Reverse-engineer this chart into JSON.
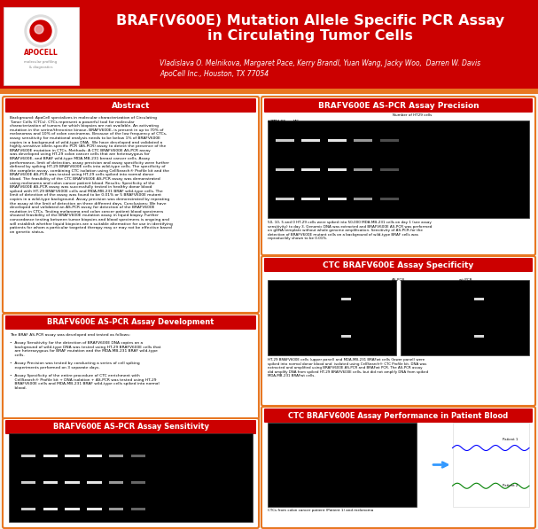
{
  "bg_color": "#f5f5f0",
  "header_bg": "#cc0000",
  "header_stripe_color": "#e87722",
  "title_text": "BRAF(V600E) Mutation Allele Specific PCR Assay\nin Circulating Tumor Cells",
  "title_color": "#ffffff",
  "title_fontsize": 11.5,
  "authors_text": "Vladislava O. Melnikova, Margaret Pace, Kerry Brandl, Yuan Wang, Jacky Woo,  Darren W. Davis",
  "affiliation_text": "ApoCell Inc., Houston, TX 77054",
  "authors_color": "#ffffff",
  "authors_fontsize": 5.5,
  "section_header_bg": "#cc0000",
  "section_header_color": "#ffffff",
  "section_border_color": "#e87722",
  "panel_bg": "#ffffff",
  "abstract_title": "Abstract",
  "abstract_body": "Background: ApoCell specializes in molecular characterization of Circulating\nTumor Cells (CTCs). CTCs represent a powerful tool for molecular\ncharacterization of tumors for which biopsies are not available. An activating\nmutation in the serine/threonine kinase, BRAFV600E, is present in up to 70% of\nmelanomas and 10% of colon carcinomas. Because of the low frequency of CTCs,\nassay sensitivity for mutational analysis needs to be below 1% of BRAFV600E\ncopies in a background of wild-type DNA.  We have developed and validated a\nhighly-sensitive allele-specific PCR (AS-PCR) assay to detect the presence of the\nBRAFV600E mutation in CTCs. Methods: A CTC BRAFV600E AS-PCR assay\nwas developed using HT-29 colon cancer cells that are heterozygous for\nBRAFV600E, and BRAF wild-type MDA-MB-231 breast cancer cells. Assay\nperformance, limit of detection, assay precision and assay specificity were further\ndefined by spiking HT-29 BRAFV600E cells into wild-type cells. The specificity of\nthe complete assay, combining CTC isolation using CellSearch® Profile kit and the\nBRAFV600E AS-PCR was tested using HT-29 cells spiked into normal donor\nblood. The feasibility of the CTC BRAFV600E AS-PCR assay was demonstrated\nusing melanoma and colon cancer patient blood. Results: Specificity of the\nBRAFV600E AS-PCR assay was successfully tested in healthy donor blood\nspiked with HT-29 BRAFV600E cells and MDA-MB-231 BRAF wild-type cells. The\nlimit of detection of the assay was found to be 0.01% or 5 BRAFV600E mutant\ncopies in a wild-type background. Assay precision was demonstrated by repeating\nthe assay at the limit of detection on three different days. Conclusions: We have\ndeveloped and validated an AS-PCR assay for detection of the BRAFV600E\nmutation in CTCs. Testing melanoma and colon cancer patient blood specimens\nshowed feasibility of the BRAFV600E mutation assay in liquid biopsy. Further\nconcordance testing between tumor biopsies and blood specimens is ongoing and\nwill establish whether liquid biopsies are a suitable alternative for use in identifying\npatients for whom a particular targeted therapy may or may not be effective based\non genetic status.",
  "dev_title": "BRAFV600E AS-PCR Assay Development",
  "dev_body": "The BRAF AS-PCR assay was developed and tested as follows:\n\n•  Assay Sensitivity for the detection of BRAFV600E DNA copies on a\n    background of wild-type DNA was tested using HT-29 BRAFV600E cells that\n    are heterozygous for BRAF mutation and the MDA-MB-231 BRAF wild-type\n    cells.\n\n•  Assay Precision was tested by conducting a series of cell spiking\n    experiments performed on 3 separate days.\n\n•  Assay Specificity of the entire procedure of CTC enrichment with\n    CellSearch® Profile kit + DNA isolation + AS-PCR was tested using HT-29\n    BRAFV600E cells and MDA-MB-231 BRAF wild-type cells spiked into normal\n    blood.",
  "sensitivity_title": "BRAFV600E AS-PCR Assay Sensitivity",
  "precision_title": "BRAFV600E AS-PCR Assay Precision",
  "precision_caption": "50, 10, 5 and 0 HT-29 cells were spiked into 50,000 MDA-MB-231 cells on day 1 (see assay\nsensitivity) to day 3. Genomic DNA was extracted and BRAFV600E AS-PCR was performed\non gDNA template without whole genome amplification. Sensitivity of AS-PCR for the\ndetection of BRAFV600E mutant cells on a background of wild-type BRAF cells was\nreproducibly shown to be 0.01%.",
  "specificity_title": "CTC BRAFV600E Assay Specificity",
  "specificity_caption": "HT-29 BRAFV600E cells (upper panel) and MDA-MB-231 BRAFwt cells (lower panel) were\nspiked into normal donor blood and  isolated using CellSearch® CTC Profile kit. DNA was\nextracted and amplified using BRAFV600E AS-PCR and BRAFwt PCR. The AS-PCR assay\ndid amplify DNA from spiked HT-29 BRAFV600E cells, but did not amplify DNA from spiked\nMDA-MB-231 BRAFwt cells.",
  "patient_title": "CTC BRAFV600E Assay Performance in Patient Blood",
  "patient_caption": "CTCs from colon cancer patient (Patient 1) and melanoma"
}
